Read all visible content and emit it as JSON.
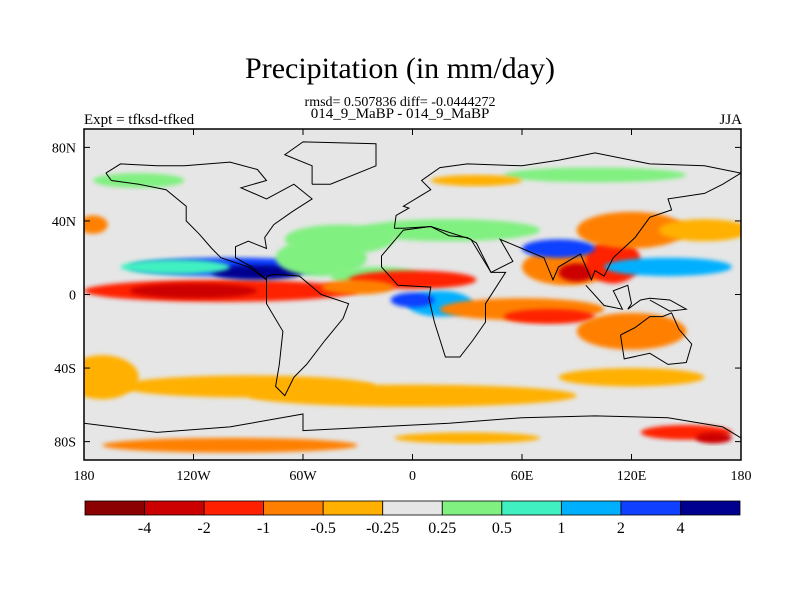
{
  "chart_data": {
    "type": "heatmap",
    "title": "Precipitation (in mm/day)",
    "stats_line": "rmsd= 0.507836 diff= -0.0444272",
    "subtitle": "014_9_MaBP - 014_9_MaBP",
    "left_label": "Expt = tfksd-tfked",
    "right_label": "JJA",
    "xlim": [
      -180,
      180
    ],
    "ylim": [
      -90,
      90
    ],
    "x_ticks": [
      {
        "value": -180,
        "label": "180"
      },
      {
        "value": -120,
        "label": "120W"
      },
      {
        "value": -60,
        "label": "60W"
      },
      {
        "value": 0,
        "label": "0"
      },
      {
        "value": 60,
        "label": "60E"
      },
      {
        "value": 120,
        "label": "120E"
      },
      {
        "value": 180,
        "label": "180"
      }
    ],
    "y_ticks": [
      {
        "value": 80,
        "label": "80N"
      },
      {
        "value": 40,
        "label": "40N"
      },
      {
        "value": 0,
        "label": "0"
      },
      {
        "value": -40,
        "label": "40S"
      },
      {
        "value": -80,
        "label": "80S"
      }
    ],
    "colorbar": {
      "levels": [
        "-4",
        "-2",
        "-1",
        "-0.5",
        "-0.25",
        "0.25",
        "0.5",
        "1",
        "2",
        "4"
      ],
      "colors": [
        "#8b0000",
        "#cc0000",
        "#ff2000",
        "#ff8000",
        "#ffb000",
        "#e6e6e6",
        "#80f080",
        "#40f0c0",
        "#00b0ff",
        "#1040ff",
        "#000090"
      ]
    },
    "regions": [
      {
        "lon": -105,
        "lat": 2,
        "rlon": 75,
        "rlat": 6,
        "bin": 2
      },
      {
        "lon": -120,
        "lat": 2,
        "rlon": 35,
        "rlat": 4,
        "bin": 1
      },
      {
        "lon": -100,
        "lat": 15,
        "rlon": 55,
        "rlat": 5,
        "bin": 9
      },
      {
        "lon": -85,
        "lat": 12,
        "rlon": 25,
        "rlat": 4,
        "bin": 10
      },
      {
        "lon": -130,
        "lat": 15,
        "rlon": 30,
        "rlat": 4,
        "bin": 7
      },
      {
        "lon": -50,
        "lat": 20,
        "rlon": 25,
        "rlat": 10,
        "bin": 6
      },
      {
        "lon": -40,
        "lat": 30,
        "rlon": 30,
        "rlat": 8,
        "bin": 6
      },
      {
        "lon": -20,
        "lat": 10,
        "rlon": 25,
        "rlat": 5,
        "bin": 6
      },
      {
        "lon": 0,
        "lat": 8,
        "rlon": 35,
        "rlat": 5,
        "bin": 2
      },
      {
        "lon": -30,
        "lat": 4,
        "rlon": 20,
        "rlat": 4,
        "bin": 3
      },
      {
        "lon": 15,
        "lat": -5,
        "rlon": 18,
        "rlat": 7,
        "bin": 8
      },
      {
        "lon": 0,
        "lat": -3,
        "rlon": 12,
        "rlat": 4,
        "bin": 9
      },
      {
        "lon": 60,
        "lat": -8,
        "rlon": 45,
        "rlat": 6,
        "bin": 3
      },
      {
        "lon": 75,
        "lat": -12,
        "rlon": 25,
        "rlat": 4,
        "bin": 2
      },
      {
        "lon": 85,
        "lat": 15,
        "rlon": 25,
        "rlat": 10,
        "bin": 3
      },
      {
        "lon": 90,
        "lat": 12,
        "rlon": 10,
        "rlat": 5,
        "bin": 1
      },
      {
        "lon": 110,
        "lat": 18,
        "rlon": 15,
        "rlat": 12,
        "bin": 2
      },
      {
        "lon": 120,
        "lat": 35,
        "rlon": 30,
        "rlat": 10,
        "bin": 3
      },
      {
        "lon": 140,
        "lat": 15,
        "rlon": 35,
        "rlat": 5,
        "bin": 8
      },
      {
        "lon": 160,
        "lat": 35,
        "rlon": 25,
        "rlat": 6,
        "bin": 4
      },
      {
        "lon": 20,
        "lat": 35,
        "rlon": 50,
        "rlat": 6,
        "bin": 6
      },
      {
        "lon": 100,
        "lat": 65,
        "rlon": 50,
        "rlat": 4,
        "bin": 6
      },
      {
        "lon": -150,
        "lat": 62,
        "rlon": 25,
        "rlat": 4,
        "bin": 6
      },
      {
        "lon": -175,
        "lat": 38,
        "rlon": 8,
        "rlat": 5,
        "bin": 3
      },
      {
        "lon": 35,
        "lat": 62,
        "rlon": 25,
        "rlat": 3,
        "bin": 4
      },
      {
        "lon": -90,
        "lat": -50,
        "rlon": 70,
        "rlat": 6,
        "bin": 4
      },
      {
        "lon": 0,
        "lat": -55,
        "rlon": 90,
        "rlat": 6,
        "bin": 4
      },
      {
        "lon": 120,
        "lat": -45,
        "rlon": 40,
        "rlat": 5,
        "bin": 4
      },
      {
        "lon": -100,
        "lat": -82,
        "rlon": 70,
        "rlat": 4,
        "bin": 3
      },
      {
        "lon": 30,
        "lat": -78,
        "rlon": 40,
        "rlat": 3,
        "bin": 4
      },
      {
        "lon": 150,
        "lat": -75,
        "rlon": 25,
        "rlat": 4,
        "bin": 2
      },
      {
        "lon": 165,
        "lat": -78,
        "rlon": 10,
        "rlat": 3,
        "bin": 1
      },
      {
        "lon": 120,
        "lat": -20,
        "rlon": 30,
        "rlat": 10,
        "bin": 3
      },
      {
        "lon": 80,
        "lat": 25,
        "rlon": 20,
        "rlat": 5,
        "bin": 9
      },
      {
        "lon": -170,
        "lat": -45,
        "rlon": 20,
        "rlat": 12,
        "bin": 4
      }
    ],
    "coastlines": [
      [
        [
          -168,
          66
        ],
        [
          -160,
          71
        ],
        [
          -140,
          70
        ],
        [
          -125,
          70
        ],
        [
          -100,
          72
        ],
        [
          -85,
          68
        ],
        [
          -80,
          62
        ],
        [
          -94,
          58
        ],
        [
          -80,
          52
        ],
        [
          -65,
          60
        ],
        [
          -55,
          52
        ],
        [
          -66,
          45
        ],
        [
          -76,
          38
        ],
        [
          -81,
          31
        ],
        [
          -80,
          25
        ],
        [
          -90,
          29
        ],
        [
          -97,
          26
        ],
        [
          -97,
          20
        ],
        [
          -88,
          15
        ],
        [
          -80,
          8
        ],
        [
          -90,
          15
        ],
        [
          -105,
          20
        ],
        [
          -110,
          25
        ],
        [
          -117,
          33
        ],
        [
          -124,
          40
        ],
        [
          -124,
          48
        ],
        [
          -135,
          57
        ],
        [
          -150,
          60
        ],
        [
          -165,
          62
        ],
        [
          -168,
          66
        ]
      ],
      [
        [
          -80,
          10
        ],
        [
          -75,
          11
        ],
        [
          -62,
          10
        ],
        [
          -50,
          0
        ],
        [
          -35,
          -5
        ],
        [
          -38,
          -13
        ],
        [
          -48,
          -25
        ],
        [
          -58,
          -38
        ],
        [
          -65,
          -45
        ],
        [
          -70,
          -55
        ],
        [
          -75,
          -50
        ],
        [
          -73,
          -38
        ],
        [
          -71,
          -20
        ],
        [
          -80,
          -5
        ],
        [
          -80,
          10
        ]
      ],
      [
        [
          -10,
          36
        ],
        [
          -9,
          43
        ],
        [
          -2,
          47
        ],
        [
          -5,
          48
        ],
        [
          5,
          54
        ],
        [
          10,
          57
        ],
        [
          5,
          62
        ],
        [
          15,
          69
        ],
        [
          30,
          71
        ],
        [
          60,
          70
        ],
        [
          80,
          73
        ],
        [
          100,
          77
        ],
        [
          130,
          71
        ],
        [
          160,
          70
        ],
        [
          180,
          66
        ],
        [
          170,
          60
        ],
        [
          160,
          55
        ],
        [
          140,
          52
        ],
        [
          142,
          46
        ],
        [
          130,
          42
        ],
        [
          122,
          31
        ],
        [
          110,
          20
        ],
        [
          105,
          10
        ],
        [
          100,
          13
        ],
        [
          98,
          8
        ],
        [
          92,
          22
        ],
        [
          80,
          15
        ],
        [
          77,
          8
        ],
        [
          72,
          20
        ],
        [
          60,
          25
        ],
        [
          48,
          30
        ],
        [
          55,
          18
        ],
        [
          43,
          12
        ],
        [
          35,
          28
        ],
        [
          30,
          31
        ],
        [
          20,
          32
        ],
        [
          10,
          37
        ],
        [
          -5,
          36
        ],
        [
          -10,
          36
        ]
      ],
      [
        [
          -17,
          21
        ],
        [
          -17,
          15
        ],
        [
          -8,
          5
        ],
        [
          10,
          4
        ],
        [
          9,
          -2
        ],
        [
          12,
          -15
        ],
        [
          18,
          -34
        ],
        [
          26,
          -34
        ],
        [
          33,
          -25
        ],
        [
          40,
          -15
        ],
        [
          40,
          -5
        ],
        [
          51,
          12
        ],
        [
          43,
          12
        ],
        [
          32,
          30
        ],
        [
          10,
          37
        ],
        [
          -5,
          35
        ],
        [
          -17,
          21
        ]
      ],
      [
        [
          114,
          -22
        ],
        [
          122,
          -18
        ],
        [
          130,
          -12
        ],
        [
          137,
          -12
        ],
        [
          142,
          -10
        ],
        [
          146,
          -19
        ],
        [
          153,
          -27
        ],
        [
          150,
          -37
        ],
        [
          140,
          -38
        ],
        [
          130,
          -32
        ],
        [
          116,
          -35
        ],
        [
          114,
          -22
        ]
      ],
      [
        [
          -180,
          -70
        ],
        [
          -140,
          -75
        ],
        [
          -100,
          -72
        ],
        [
          -60,
          -65
        ],
        [
          -60,
          -74
        ],
        [
          -20,
          -72
        ],
        [
          20,
          -70
        ],
        [
          60,
          -67
        ],
        [
          100,
          -66
        ],
        [
          140,
          -67
        ],
        [
          170,
          -72
        ],
        [
          180,
          -78
        ],
        [
          180,
          -90
        ],
        [
          -180,
          -90
        ],
        [
          -180,
          -70
        ]
      ],
      [
        [
          -55,
          60
        ],
        [
          -45,
          60
        ],
        [
          -20,
          70
        ],
        [
          -20,
          82
        ],
        [
          -60,
          83
        ],
        [
          -70,
          76
        ],
        [
          -55,
          70
        ],
        [
          -55,
          60
        ]
      ],
      [
        [
          95,
          5
        ],
        [
          105,
          -6
        ],
        [
          115,
          -8
        ],
        [
          110,
          2
        ],
        [
          118,
          5
        ],
        [
          120,
          -5
        ],
        [
          118,
          -8
        ],
        [
          125,
          -3
        ],
        [
          130,
          -2
        ],
        [
          141,
          -3
        ],
        [
          150,
          -8
        ],
        [
          141,
          -9
        ],
        [
          130,
          -3
        ]
      ]
    ]
  }
}
